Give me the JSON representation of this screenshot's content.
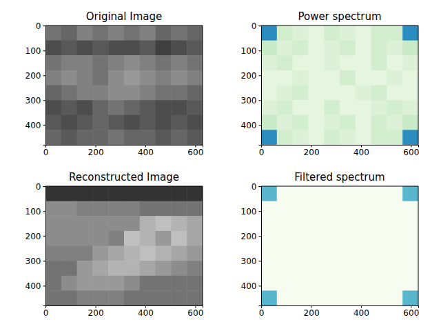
{
  "chart_data": [
    {
      "type": "image",
      "title": "Original Image",
      "color": "gray",
      "clim": [
        0,
        1
      ],
      "xlim": [
        -0.5,
        629.5
      ],
      "ylim": [
        479.5,
        -0.5
      ],
      "xticks": [
        0,
        200,
        400,
        600
      ],
      "yticks": [
        0,
        100,
        200,
        300,
        400
      ],
      "cells": [
        [
          0.45,
          0.4,
          0.5,
          0.45,
          0.5,
          0.45,
          0.5,
          0.4,
          0.45,
          0.4
        ],
        [
          0.3,
          0.35,
          0.3,
          0.35,
          0.3,
          0.3,
          0.35,
          0.25,
          0.3,
          0.35
        ],
        [
          0.45,
          0.5,
          0.5,
          0.45,
          0.5,
          0.55,
          0.5,
          0.45,
          0.5,
          0.45
        ],
        [
          0.5,
          0.55,
          0.5,
          0.45,
          0.55,
          0.6,
          0.55,
          0.5,
          0.55,
          0.5
        ],
        [
          0.4,
          0.45,
          0.5,
          0.5,
          0.55,
          0.55,
          0.5,
          0.45,
          0.45,
          0.4
        ],
        [
          0.3,
          0.35,
          0.3,
          0.4,
          0.45,
          0.4,
          0.35,
          0.3,
          0.3,
          0.35
        ],
        [
          0.35,
          0.3,
          0.35,
          0.4,
          0.35,
          0.3,
          0.35,
          0.3,
          0.35,
          0.3
        ],
        [
          0.4,
          0.35,
          0.4,
          0.4,
          0.45,
          0.4,
          0.4,
          0.35,
          0.4,
          0.35
        ]
      ]
    },
    {
      "type": "image",
      "title": "Power spectrum",
      "color": "GnBu",
      "clim": [
        0,
        1
      ],
      "xlim": [
        -0.5,
        629.5
      ],
      "ylim": [
        479.5,
        -0.5
      ],
      "xticks": [
        0,
        200,
        400,
        600
      ],
      "yticks": [
        0,
        100,
        200,
        300,
        400
      ],
      "cells": [
        [
          0.75,
          0.2,
          0.15,
          0.1,
          0.2,
          0.15,
          0.1,
          0.2,
          0.2,
          0.75
        ],
        [
          0.25,
          0.15,
          0.2,
          0.1,
          0.15,
          0.2,
          0.1,
          0.2,
          0.15,
          0.25
        ],
        [
          0.15,
          0.2,
          0.1,
          0.1,
          0.15,
          0.1,
          0.1,
          0.2,
          0.1,
          0.15
        ],
        [
          0.1,
          0.1,
          0.15,
          0.1,
          0.1,
          0.2,
          0.1,
          0.1,
          0.15,
          0.1
        ],
        [
          0.1,
          0.15,
          0.2,
          0.1,
          0.1,
          0.1,
          0.15,
          0.2,
          0.1,
          0.1
        ],
        [
          0.15,
          0.2,
          0.1,
          0.1,
          0.2,
          0.1,
          0.1,
          0.15,
          0.2,
          0.15
        ],
        [
          0.25,
          0.15,
          0.2,
          0.1,
          0.15,
          0.2,
          0.1,
          0.2,
          0.15,
          0.25
        ],
        [
          0.75,
          0.2,
          0.15,
          0.1,
          0.2,
          0.15,
          0.1,
          0.2,
          0.2,
          0.75
        ]
      ]
    },
    {
      "type": "image",
      "title": "Reconstructed Image",
      "color": "gray",
      "clim": [
        0,
        1
      ],
      "xlim": [
        -0.5,
        629.5
      ],
      "ylim": [
        479.5,
        -0.5
      ],
      "xticks": [
        0,
        200,
        400,
        600
      ],
      "yticks": [
        0,
        100,
        200,
        300,
        400
      ],
      "cells": [
        [
          0.2,
          0.2,
          0.2,
          0.2,
          0.2,
          0.2,
          0.2,
          0.2,
          0.2,
          0.2
        ],
        [
          0.55,
          0.55,
          0.5,
          0.5,
          0.5,
          0.5,
          0.45,
          0.45,
          0.45,
          0.45
        ],
        [
          0.55,
          0.55,
          0.55,
          0.55,
          0.55,
          0.55,
          0.7,
          0.75,
          0.7,
          0.65
        ],
        [
          0.55,
          0.55,
          0.55,
          0.55,
          0.5,
          0.75,
          0.7,
          0.6,
          0.75,
          0.65
        ],
        [
          0.5,
          0.5,
          0.5,
          0.6,
          0.65,
          0.7,
          0.75,
          0.7,
          0.65,
          0.6
        ],
        [
          0.45,
          0.45,
          0.6,
          0.65,
          0.7,
          0.7,
          0.65,
          0.6,
          0.55,
          0.5
        ],
        [
          0.45,
          0.55,
          0.6,
          0.6,
          0.6,
          0.55,
          0.45,
          0.45,
          0.45,
          0.45
        ],
        [
          0.45,
          0.45,
          0.5,
          0.5,
          0.5,
          0.45,
          0.45,
          0.45,
          0.45,
          0.45
        ]
      ]
    },
    {
      "type": "image",
      "title": "Filtered spectrum",
      "color": "GnBu",
      "clim": [
        0,
        1
      ],
      "xlim": [
        -0.5,
        629.5
      ],
      "ylim": [
        479.5,
        -0.5
      ],
      "xticks": [
        0,
        200,
        400,
        600
      ],
      "yticks": [
        0,
        100,
        200,
        300,
        400
      ],
      "cells": [
        [
          0.6,
          0,
          0,
          0,
          0,
          0,
          0,
          0,
          0,
          0.6
        ],
        [
          0,
          0,
          0,
          0,
          0,
          0,
          0,
          0,
          0,
          0
        ],
        [
          0,
          0,
          0,
          0,
          0,
          0,
          0,
          0,
          0,
          0
        ],
        [
          0,
          0,
          0,
          0,
          0,
          0,
          0,
          0,
          0,
          0
        ],
        [
          0,
          0,
          0,
          0,
          0,
          0,
          0,
          0,
          0,
          0
        ],
        [
          0,
          0,
          0,
          0,
          0,
          0,
          0,
          0,
          0,
          0
        ],
        [
          0,
          0,
          0,
          0,
          0,
          0,
          0,
          0,
          0,
          0
        ],
        [
          0.6,
          0,
          0,
          0,
          0,
          0,
          0,
          0,
          0,
          0.6
        ]
      ]
    }
  ]
}
